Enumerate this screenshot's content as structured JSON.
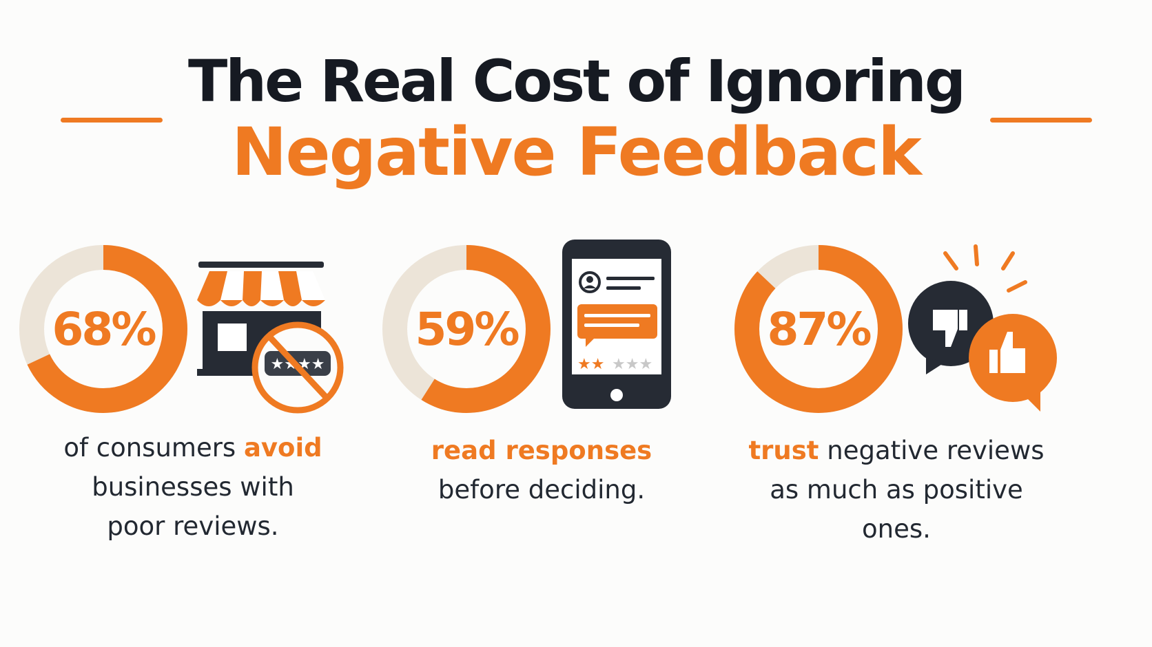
{
  "title": {
    "line1": "The Real Cost of Ignoring",
    "line2": "Negative Feedback"
  },
  "colors": {
    "accent": "#ef7a22",
    "dark": "#161a22",
    "track": "#ece4d8"
  },
  "stats": [
    {
      "value": "68%",
      "fraction": 0.68,
      "icon": "storefront-no-reviews-icon",
      "caption": {
        "pre": "of consumers ",
        "highlight": "avoid",
        "line2": "businesses with",
        "line3": "poor reviews."
      }
    },
    {
      "value": "59%",
      "fraction": 0.59,
      "icon": "phone-review-response-icon",
      "caption": {
        "highlight": "read responses",
        "line2": "before deciding."
      }
    },
    {
      "value": "87%",
      "fraction": 0.87,
      "icon": "thumbs-up-down-speech-icon",
      "caption": {
        "highlight": "trust",
        "post": " negative reviews",
        "line2": "as much as positive ones."
      }
    }
  ]
}
